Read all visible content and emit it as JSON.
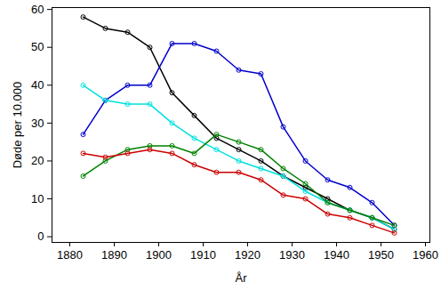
{
  "chart_data": {
    "type": "line",
    "x_label": "År",
    "y_label": "Døde per 10.000",
    "x": [
      1883,
      1888,
      1893,
      1898,
      1903,
      1908,
      1913,
      1918,
      1923,
      1928,
      1933,
      1938,
      1943,
      1948,
      1953
    ],
    "series": [
      {
        "color": "#000000",
        "values": [
          58,
          55,
          54,
          50,
          38,
          32,
          26,
          23,
          20,
          16,
          13,
          10,
          7,
          5,
          2
        ]
      },
      {
        "color": "#0000cc",
        "values": [
          27,
          36,
          40,
          40,
          51,
          51,
          49,
          44,
          43,
          29,
          20,
          15,
          13,
          9,
          3
        ]
      },
      {
        "color": "#00e0e0",
        "values": [
          40,
          36,
          35,
          35,
          30,
          26,
          23,
          20,
          18,
          16,
          12,
          9,
          7,
          5,
          2
        ]
      },
      {
        "color": "#008000",
        "values": [
          16,
          20,
          23,
          24,
          24,
          22,
          27,
          25,
          23,
          18,
          14,
          9,
          7,
          5,
          3
        ]
      },
      {
        "color": "#cc0000",
        "values": [
          22,
          21,
          22,
          23,
          22,
          19,
          17,
          17,
          15,
          11,
          10,
          6,
          5,
          3,
          1
        ]
      }
    ],
    "xlim": [
      1876,
      1961
    ],
    "xticks": [
      1880,
      1890,
      1900,
      1910,
      1920,
      1930,
      1940,
      1950,
      1960
    ],
    "ylim": [
      -1.5,
      60.5
    ],
    "yticks": [
      0,
      10,
      20,
      30,
      40,
      50,
      60
    ],
    "grid": false,
    "marker": "circle",
    "line_style": "solid"
  }
}
